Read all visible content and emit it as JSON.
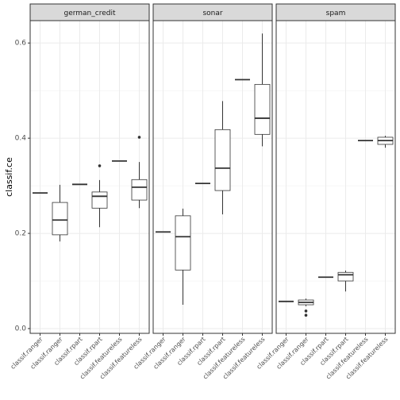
{
  "chart_data": [
    {
      "type": "box",
      "title": "german_credit",
      "ylabel": "classif.ce",
      "categories": [
        "classif.ranger",
        "classif.ranger",
        "classif.rpart",
        "classif.rpart",
        "classif.featureless",
        "classif.featureless"
      ],
      "boxes": [
        {
          "min": 0.285,
          "q1": 0.285,
          "median": 0.285,
          "q3": 0.285,
          "max": 0.285
        },
        {
          "min": 0.183,
          "q1": 0.197,
          "median": 0.228,
          "q3": 0.265,
          "max": 0.302
        },
        {
          "min": 0.303,
          "q1": 0.303,
          "median": 0.303,
          "q3": 0.303,
          "max": 0.303
        },
        {
          "min": 0.213,
          "q1": 0.253,
          "median": 0.278,
          "q3": 0.287,
          "max": 0.312,
          "outliers": [
            0.342
          ]
        },
        {
          "min": 0.352,
          "q1": 0.352,
          "median": 0.352,
          "q3": 0.352,
          "max": 0.352
        },
        {
          "min": 0.253,
          "q1": 0.27,
          "median": 0.297,
          "q3": 0.313,
          "max": 0.35,
          "outliers": [
            0.402
          ]
        }
      ],
      "ylim": [
        -0.01,
        0.647
      ],
      "yticks": [
        {
          "value": 0,
          "label": "0.0"
        },
        0.2,
        0.4,
        0.6
      ],
      "yminor": [
        0.1,
        0.3,
        0.5
      ],
      "grid": true,
      "color": "#333333"
    },
    {
      "type": "box",
      "title": "sonar",
      "categories": [
        "classif.ranger",
        "classif.ranger",
        "classif.rpart",
        "classif.rpart",
        "classif.featureless",
        "classif.featureless"
      ],
      "boxes": [
        {
          "min": 0.203,
          "q1": 0.203,
          "median": 0.203,
          "q3": 0.203,
          "max": 0.203
        },
        {
          "min": 0.05,
          "q1": 0.123,
          "median": 0.193,
          "q3": 0.237,
          "max": 0.252
        },
        {
          "min": 0.305,
          "q1": 0.305,
          "median": 0.305,
          "q3": 0.305,
          "max": 0.305
        },
        {
          "min": 0.24,
          "q1": 0.29,
          "median": 0.337,
          "q3": 0.418,
          "max": 0.478
        },
        {
          "min": 0.523,
          "q1": 0.523,
          "median": 0.523,
          "q3": 0.523,
          "max": 0.523
        },
        {
          "min": 0.383,
          "q1": 0.408,
          "median": 0.442,
          "q3": 0.513,
          "max": 0.62
        }
      ],
      "ylim": [
        -0.01,
        0.647
      ],
      "yticks": [
        0,
        0.2,
        0.4,
        0.6
      ],
      "yminor": [
        0.1,
        0.3,
        0.5
      ],
      "grid": true,
      "color": "#333333"
    },
    {
      "type": "box",
      "title": "spam",
      "categories": [
        "classif.ranger",
        "classif.ranger",
        "classif.rpart",
        "classif.rpart",
        "classif.featureless",
        "classif.featureless"
      ],
      "boxes": [
        {
          "min": 0.057,
          "q1": 0.057,
          "median": 0.057,
          "q3": 0.057,
          "max": 0.057
        },
        {
          "min": 0.047,
          "q1": 0.05,
          "median": 0.055,
          "q3": 0.06,
          "max": 0.063,
          "outliers": [
            0.037,
            0.028
          ]
        },
        {
          "min": 0.108,
          "q1": 0.108,
          "median": 0.108,
          "q3": 0.108,
          "max": 0.108
        },
        {
          "min": 0.078,
          "q1": 0.1,
          "median": 0.113,
          "q3": 0.118,
          "max": 0.122
        },
        {
          "min": 0.395,
          "q1": 0.395,
          "median": 0.395,
          "q3": 0.395,
          "max": 0.395
        },
        {
          "min": 0.38,
          "q1": 0.387,
          "median": 0.395,
          "q3": 0.402,
          "max": 0.405
        }
      ],
      "ylim": [
        -0.01,
        0.647
      ],
      "yticks": [
        0,
        0.2,
        0.4,
        0.6
      ],
      "yminor": [
        0.1,
        0.3,
        0.5
      ],
      "grid": true,
      "color": "#333333"
    }
  ]
}
